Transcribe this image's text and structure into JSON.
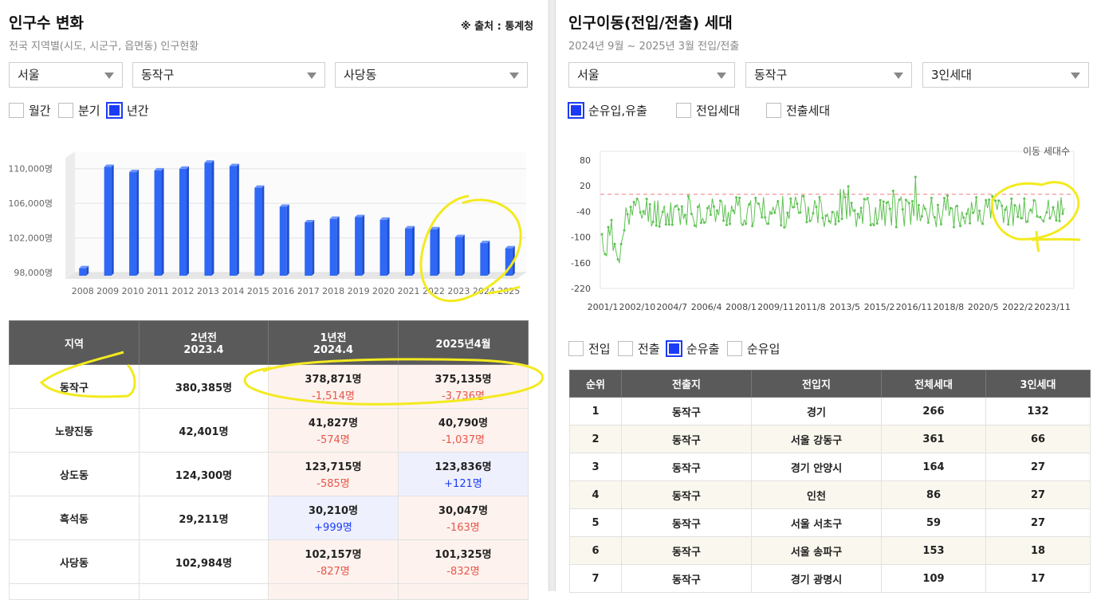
{
  "left": {
    "title": "인구수 변화",
    "subtitle": "전국 지역별(시도, 시군구, 읍면동) 인구현황",
    "source": "※ 출처 : 통계청",
    "selects": [
      "서울",
      "동작구",
      "사당동"
    ],
    "periods": [
      {
        "label": "월간",
        "checked": false
      },
      {
        "label": "분기",
        "checked": false
      },
      {
        "label": "년간",
        "checked": true
      }
    ],
    "table": {
      "headers": [
        {
          "line1": "지역",
          "line2": ""
        },
        {
          "line1": "2년전",
          "line2": "2023.4"
        },
        {
          "line1": "1년전",
          "line2": "2024.4"
        },
        {
          "line1": "2025년4월",
          "line2": ""
        }
      ],
      "rows": [
        {
          "region": "동작구",
          "y2": "380,385명",
          "y1": "378,871명",
          "y1_change": "-1,514명",
          "cur": "375,135명",
          "cur_change": "-3,736명"
        },
        {
          "region": "노량진동",
          "y2": "42,401명",
          "y1": "41,827명",
          "y1_change": "-574명",
          "cur": "40,790명",
          "cur_change": "-1,037명"
        },
        {
          "region": "상도동",
          "y2": "124,300명",
          "y1": "123,715명",
          "y1_change": "-585명",
          "cur": "123,836명",
          "cur_change": "+121명"
        },
        {
          "region": "흑석동",
          "y2": "29,211명",
          "y1": "30,210명",
          "y1_change": "+999명",
          "cur": "30,047명",
          "cur_change": "-163명"
        },
        {
          "region": "사당동",
          "y2": "102,984명",
          "y1": "102,157명",
          "y1_change": "-827명",
          "cur": "101,325명",
          "cur_change": "-832명"
        }
      ]
    }
  },
  "right": {
    "title": "인구이동(전입/전출) 세대",
    "subtitle": "2024년 9월 ~ 2025년 3월 전입/전출",
    "selects": [
      "서울",
      "동작구",
      "3인세대"
    ],
    "chart_options": [
      {
        "label": "순유입,유출",
        "checked": true
      },
      {
        "label": "전입세대",
        "checked": false
      },
      {
        "label": "전출세대",
        "checked": false
      }
    ],
    "table_options": [
      {
        "label": "전입",
        "checked": false
      },
      {
        "label": "전출",
        "checked": false
      },
      {
        "label": "순유출",
        "checked": true
      },
      {
        "label": "순유입",
        "checked": false
      }
    ],
    "table": {
      "headers": [
        "순위",
        "전출지",
        "전입지",
        "전체세대",
        "3인세대"
      ],
      "rows": [
        [
          "1",
          "동작구",
          "경기",
          "266",
          "132"
        ],
        [
          "2",
          "동작구",
          "서울 강동구",
          "361",
          "66"
        ],
        [
          "3",
          "동작구",
          "경기 안양시",
          "164",
          "27"
        ],
        [
          "4",
          "동작구",
          "인천",
          "86",
          "27"
        ],
        [
          "5",
          "동작구",
          "서울 서초구",
          "59",
          "27"
        ],
        [
          "6",
          "동작구",
          "서울 송파구",
          "153",
          "18"
        ],
        [
          "7",
          "동작구",
          "경기 광명시",
          "109",
          "17"
        ]
      ]
    }
  },
  "chart_data": [
    {
      "type": "bar",
      "title": "",
      "categories": [
        "2008",
        "2009",
        "2010",
        "2011",
        "2012",
        "2013",
        "2014",
        "2015",
        "2016",
        "2017",
        "2018",
        "2019",
        "2020",
        "2021",
        "2022",
        "2023",
        "2024",
        "2025"
      ],
      "values": [
        98500,
        110200,
        109600,
        109800,
        110000,
        110700,
        110300,
        107800,
        105600,
        103800,
        104200,
        104400,
        104100,
        103100,
        103000,
        102100,
        101400,
        100800
      ],
      "yticks": [
        "98,000명",
        "102,000명",
        "106,000명",
        "110,000명"
      ],
      "ylim": [
        98000,
        112000
      ],
      "color": "#2f68f5"
    },
    {
      "type": "line",
      "legend": "이동 세대수",
      "xticks": [
        "2001/1",
        "2002/10",
        "2004/7",
        "2006/4",
        "2008/1",
        "2009/11",
        "2011/8",
        "2013/5",
        "2015/2",
        "2016/11",
        "2018/8",
        "2020/5",
        "2022/2",
        "2023/11"
      ],
      "yticks": [
        "80",
        "20",
        "-40",
        "-100",
        "-160",
        "-220"
      ],
      "ylim": [
        -220,
        100
      ],
      "reference_line": 0,
      "color": "#5ec252",
      "reference_color": "#f3a7a7"
    }
  ]
}
